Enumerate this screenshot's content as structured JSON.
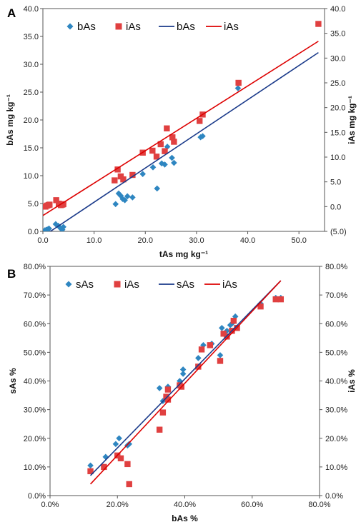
{
  "chart_data": [
    {
      "panel_label": "A",
      "type": "scatter",
      "xlabel": "tAs mg kg⁻¹",
      "ylabel": "bAs mg kg⁻¹",
      "y2label": "iAs mg kg⁻¹",
      "xlim": [
        0,
        55
      ],
      "ylim": [
        0,
        40
      ],
      "y2lim": [
        -5,
        40
      ],
      "xticks": [
        "0.0",
        "10.0",
        "20.0",
        "30.0",
        "40.0",
        "50.0"
      ],
      "yticks": [
        "0.0",
        "5.0",
        "10.0",
        "15.0",
        "20.0",
        "25.0",
        "30.0",
        "35.0",
        "40.0"
      ],
      "y2ticks": [
        "(5.0)",
        "0.0",
        "5.0",
        "10.0",
        "15.0",
        "20.0",
        "25.0",
        "30.0",
        "35.0",
        "40.0"
      ],
      "y2_negative_color": "#dd0000",
      "legend_position": "top-left",
      "series": [
        {
          "name": "bAs",
          "kind": "points",
          "axis": "left",
          "marker": "diamond",
          "color": "#2e86c1",
          "x": [
            0.4,
            0.7,
            1.0,
            1.2,
            2.5,
            3.0,
            3.5,
            3.8,
            4.0,
            14.2,
            14.8,
            15.2,
            15.6,
            16.0,
            16.5,
            17.5,
            19.5,
            21.5,
            22.3,
            23.2,
            23.8,
            24.3,
            25.2,
            25.6,
            30.8,
            31.2,
            38.1
          ],
          "y": [
            0.2,
            0.3,
            0.4,
            0.5,
            1.3,
            1.0,
            0.5,
            0.3,
            0.8,
            4.9,
            6.8,
            6.4,
            5.8,
            5.6,
            6.3,
            6.1,
            10.3,
            11.5,
            7.7,
            12.2,
            12.0,
            15.2,
            13.2,
            12.3,
            16.9,
            17.1,
            25.7
          ]
        },
        {
          "name": "iAs",
          "kind": "points",
          "axis": "right",
          "marker": "square",
          "color": "#e04040",
          "x": [
            0.5,
            0.8,
            1.1,
            1.3,
            2.6,
            3.1,
            3.5,
            3.8,
            4.0,
            14.0,
            14.6,
            15.2,
            15.7,
            17.5,
            19.5,
            21.4,
            22.2,
            23.0,
            23.8,
            24.2,
            25.3,
            25.6,
            30.6,
            31.2,
            38.2,
            53.8
          ],
          "y": [
            0.0,
            0.2,
            0.3,
            0.4,
            1.3,
            0.6,
            0.3,
            0.4,
            0.5,
            5.3,
            7.5,
            6.1,
            5.5,
            6.4,
            10.9,
            11.3,
            10.1,
            12.6,
            11.2,
            15.8,
            14.0,
            13.1,
            17.3,
            18.6,
            25.0,
            36.9
          ]
        },
        {
          "name": "bAs",
          "kind": "line",
          "axis": "left",
          "color": "#1a3a8a",
          "x": [
            0,
            53.8
          ],
          "y": [
            -0.9,
            32.1
          ]
        },
        {
          "name": "iAs",
          "kind": "line",
          "axis": "right",
          "color": "#dd0000",
          "x": [
            0,
            53.8
          ],
          "y": [
            -1.8,
            33.4
          ]
        }
      ]
    },
    {
      "panel_label": "B",
      "type": "scatter",
      "xlabel": "bAs %",
      "ylabel": "sAs %",
      "y2label": "iAs %",
      "xlim": [
        0,
        0.8
      ],
      "ylim": [
        0,
        0.8
      ],
      "y2lim": [
        0,
        0.8
      ],
      "xticks": [
        "0.0%",
        "20.0%",
        "40.0%",
        "60.0%",
        "80.0%"
      ],
      "yticks": [
        "0.0%",
        "10.0%",
        "20.0%",
        "30.0%",
        "40.0%",
        "50.0%",
        "60.0%",
        "70.0%",
        "80.0%"
      ],
      "y2ticks": [
        "0.0%",
        "10.0%",
        "20.0%",
        "30.0%",
        "40.0%",
        "50.0%",
        "60.0%",
        "70.0%",
        "80.0%"
      ],
      "legend_position": "top-left",
      "series": [
        {
          "name": "sAs",
          "kind": "points",
          "axis": "left",
          "marker": "diamond",
          "color": "#2e86c1",
          "x": [
            0.12,
            0.165,
            0.195,
            0.205,
            0.23,
            0.235,
            0.325,
            0.335,
            0.345,
            0.35,
            0.385,
            0.395,
            0.395,
            0.44,
            0.455,
            0.48,
            0.505,
            0.51,
            0.525,
            0.535,
            0.54,
            0.55,
            0.625,
            0.67,
            0.685
          ],
          "y": [
            0.105,
            0.135,
            0.18,
            0.2,
            0.175,
            0.18,
            0.375,
            0.33,
            0.345,
            0.38,
            0.4,
            0.425,
            0.44,
            0.48,
            0.525,
            0.53,
            0.49,
            0.585,
            0.575,
            0.595,
            0.6,
            0.625,
            0.67,
            0.69,
            0.69
          ]
        },
        {
          "name": "iAs",
          "kind": "points",
          "axis": "right",
          "marker": "square",
          "color": "#e04040",
          "x": [
            0.12,
            0.16,
            0.2,
            0.21,
            0.23,
            0.235,
            0.325,
            0.335,
            0.345,
            0.35,
            0.35,
            0.385,
            0.39,
            0.44,
            0.45,
            0.475,
            0.505,
            0.515,
            0.525,
            0.54,
            0.545,
            0.555,
            0.625,
            0.67,
            0.685
          ],
          "y": [
            0.085,
            0.1,
            0.14,
            0.13,
            0.11,
            0.04,
            0.23,
            0.29,
            0.345,
            0.335,
            0.37,
            0.385,
            0.38,
            0.45,
            0.51,
            0.525,
            0.47,
            0.565,
            0.555,
            0.575,
            0.61,
            0.585,
            0.66,
            0.685,
            0.685
          ]
        },
        {
          "name": "sAs",
          "kind": "line",
          "axis": "left",
          "color": "#1a3a8a",
          "x": [
            0.12,
            0.685
          ],
          "y": [
            0.07,
            0.75
          ]
        },
        {
          "name": "iAs",
          "kind": "line",
          "axis": "right",
          "color": "#dd0000",
          "x": [
            0.12,
            0.685
          ],
          "y": [
            0.04,
            0.75
          ]
        }
      ]
    }
  ]
}
